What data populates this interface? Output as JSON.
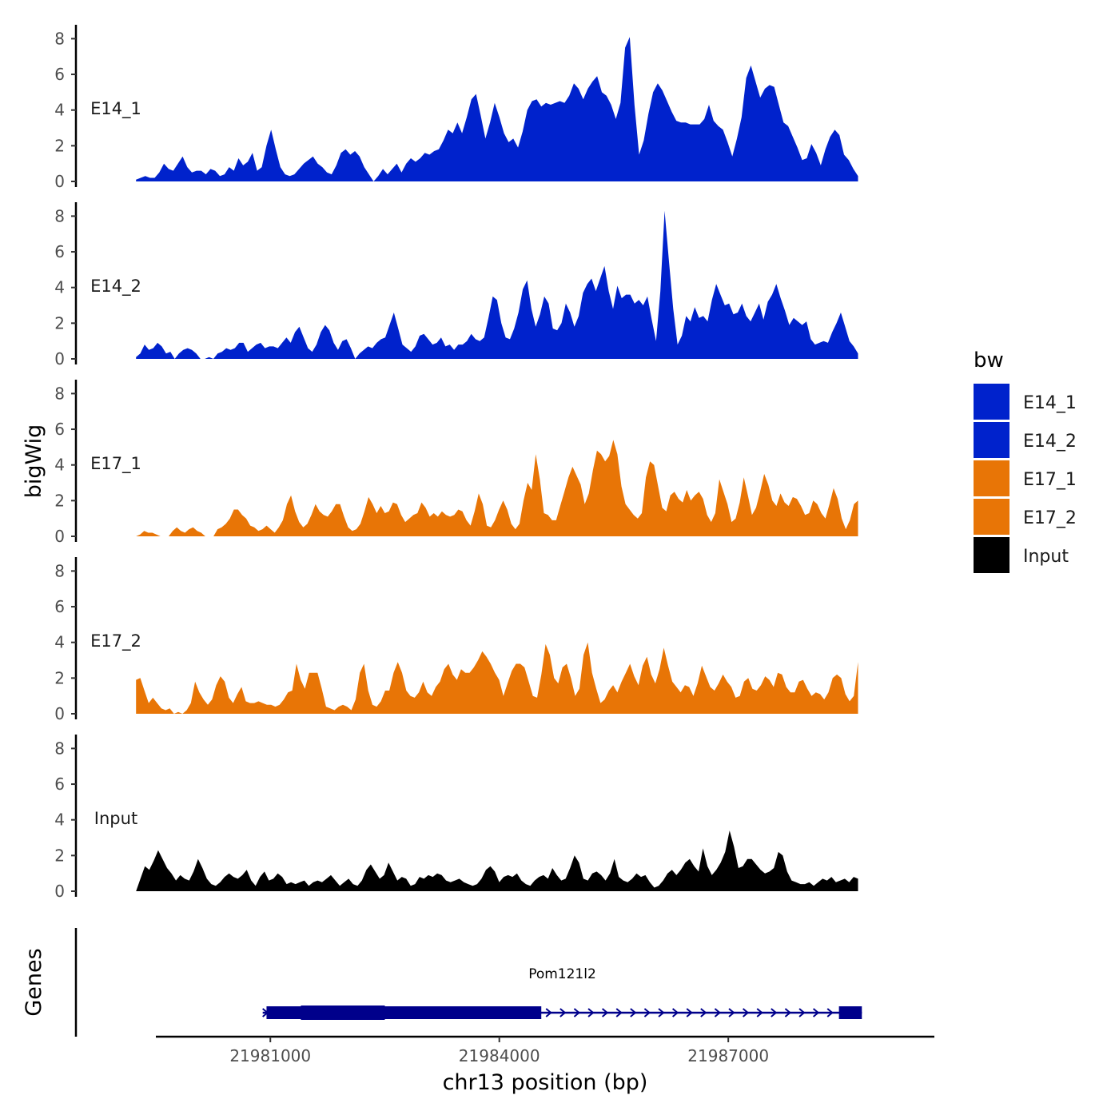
{
  "chart_data": {
    "type": "area",
    "ylabel": "bigWig",
    "xlabel": "chr13 position (bp)",
    "gene_track_label": "Genes",
    "xlim": [
      21979500,
      21989700
    ],
    "ylim": [
      0,
      8.6
    ],
    "x_ticks": [
      21981000,
      21984000,
      21987000
    ],
    "x_tick_labels": [
      "21981000",
      "21984000",
      "21987000"
    ],
    "y_ticks": [
      0,
      2,
      4,
      6,
      8
    ],
    "y_tick_labels": [
      "0",
      "2",
      "4",
      "6",
      "8"
    ],
    "region": [
      21979240,
      21988700
    ],
    "legend": {
      "title": "bw",
      "entries": [
        {
          "name": "E14_1",
          "color": "#0022CC"
        },
        {
          "name": "E14_2",
          "color": "#0022CC"
        },
        {
          "name": "E17_1",
          "color": "#E87506"
        },
        {
          "name": "E17_2",
          "color": "#E87506"
        },
        {
          "name": "Input",
          "color": "#000000"
        }
      ]
    },
    "series": [
      {
        "name": "E14_1",
        "color": "#0022CC",
        "values": [
          0.1,
          0.2,
          0.3,
          0.2,
          0.2,
          0.5,
          1.0,
          0.7,
          0.6,
          1.0,
          1.4,
          0.8,
          0.5,
          0.6,
          0.6,
          0.4,
          0.7,
          0.6,
          0.3,
          0.4,
          0.8,
          0.6,
          1.3,
          0.9,
          1.1,
          1.6,
          0.6,
          0.8,
          2.0,
          2.9,
          1.8,
          0.8,
          0.4,
          0.3,
          0.4,
          0.7,
          1.0,
          1.2,
          1.4,
          1.0,
          0.8,
          0.5,
          0.4,
          0.9,
          1.6,
          1.8,
          1.5,
          1.7,
          1.4,
          0.8,
          0.4,
          0.0,
          0.3,
          0.7,
          0.4,
          0.7,
          1.0,
          0.5,
          1.0,
          1.3,
          1.1,
          1.3,
          1.6,
          1.5,
          1.7,
          1.8,
          2.3,
          2.9,
          2.7,
          3.3,
          2.7,
          3.6,
          4.6,
          4.9,
          3.7,
          2.4,
          3.3,
          4.4,
          3.6,
          2.7,
          2.2,
          2.4,
          1.9,
          2.8,
          4.0,
          4.5,
          4.6,
          4.2,
          4.4,
          4.3,
          4.4,
          4.5,
          4.4,
          4.8,
          5.5,
          5.2,
          4.6,
          5.2,
          5.6,
          5.9,
          5.0,
          4.8,
          4.3,
          3.5,
          4.4,
          7.5,
          8.1,
          4.3,
          1.5,
          2.3,
          3.8,
          5.0,
          5.5,
          5.1,
          4.5,
          3.9,
          3.4,
          3.3,
          3.3,
          3.2,
          3.2,
          3.2,
          3.5,
          4.3,
          3.4,
          3.1,
          2.9,
          2.2,
          1.4,
          2.4,
          3.6,
          5.8,
          6.5,
          5.6,
          4.7,
          5.2,
          5.4,
          5.3,
          4.3,
          3.3,
          3.1,
          2.5,
          1.9,
          1.2,
          1.3,
          2.1,
          1.6,
          0.9,
          1.8,
          2.5,
          2.9,
          2.6,
          1.5,
          1.2,
          0.7,
          0.3
        ]
      },
      {
        "name": "E14_2",
        "color": "#0022CC",
        "values": [
          0.1,
          0.3,
          0.8,
          0.5,
          0.6,
          0.9,
          0.7,
          0.3,
          0.4,
          0.0,
          0.3,
          0.5,
          0.6,
          0.5,
          0.3,
          0.0,
          0.0,
          0.1,
          0.0,
          0.3,
          0.4,
          0.6,
          0.5,
          0.6,
          0.9,
          0.9,
          0.4,
          0.6,
          0.8,
          0.9,
          0.6,
          0.7,
          0.7,
          0.6,
          0.9,
          1.2,
          0.9,
          1.5,
          1.8,
          1.2,
          0.6,
          0.4,
          0.8,
          1.5,
          1.9,
          1.6,
          0.9,
          0.5,
          1.0,
          1.1,
          0.6,
          0.0,
          0.3,
          0.5,
          0.7,
          0.6,
          0.9,
          1.1,
          1.2,
          1.9,
          2.6,
          1.7,
          0.8,
          0.6,
          0.4,
          0.7,
          1.3,
          1.4,
          1.1,
          0.8,
          0.9,
          1.2,
          0.7,
          0.8,
          0.5,
          0.8,
          0.8,
          1.0,
          1.4,
          1.1,
          1.0,
          1.2,
          2.3,
          3.5,
          3.3,
          2.0,
          1.2,
          1.1,
          1.7,
          2.6,
          3.9,
          4.4,
          2.8,
          1.8,
          2.5,
          3.5,
          3.1,
          1.7,
          1.6,
          2.0,
          3.1,
          2.6,
          1.8,
          2.4,
          3.7,
          4.2,
          4.5,
          3.8,
          4.5,
          5.2,
          3.8,
          2.8,
          4.1,
          3.4,
          3.6,
          3.6,
          3.1,
          3.3,
          3.0,
          3.5,
          2.2,
          1.0,
          3.8,
          8.3,
          5.5,
          2.8,
          0.8,
          1.3,
          2.4,
          2.1,
          2.9,
          2.3,
          2.4,
          2.1,
          3.3,
          4.2,
          3.6,
          3.0,
          3.1,
          2.5,
          2.6,
          3.1,
          2.4,
          2.1,
          2.6,
          3.1,
          2.2,
          3.2,
          3.6,
          4.2,
          3.4,
          2.7,
          1.9,
          2.3,
          2.1,
          1.9,
          2.1,
          1.1,
          0.8,
          0.9,
          1.0,
          0.9,
          1.5,
          2.0,
          2.6,
          1.8,
          1.0,
          0.7,
          0.3
        ]
      },
      {
        "name": "E17_1",
        "color": "#E87506",
        "values": [
          0.0,
          0.1,
          0.3,
          0.2,
          0.2,
          0.1,
          0.0,
          0.0,
          0.0,
          0.3,
          0.5,
          0.3,
          0.2,
          0.4,
          0.5,
          0.3,
          0.2,
          0.0,
          0.0,
          0.0,
          0.4,
          0.5,
          0.7,
          1.0,
          1.5,
          1.5,
          1.2,
          1.0,
          0.6,
          0.5,
          0.3,
          0.4,
          0.6,
          0.4,
          0.2,
          0.5,
          0.9,
          1.8,
          2.3,
          1.4,
          0.8,
          0.5,
          0.7,
          1.2,
          1.8,
          1.4,
          1.2,
          1.1,
          1.4,
          1.8,
          1.8,
          1.1,
          0.5,
          0.3,
          0.4,
          0.7,
          1.4,
          2.2,
          1.8,
          1.3,
          1.7,
          1.3,
          1.4,
          1.9,
          1.8,
          1.2,
          0.8,
          1.0,
          1.2,
          1.3,
          1.9,
          1.6,
          1.1,
          1.3,
          1.1,
          1.4,
          1.2,
          1.1,
          1.2,
          1.5,
          1.4,
          0.9,
          0.6,
          1.4,
          2.4,
          1.8,
          0.6,
          0.5,
          0.9,
          1.5,
          2.0,
          1.5,
          0.7,
          0.4,
          0.7,
          2.0,
          3.0,
          2.6,
          4.6,
          3.2,
          1.3,
          1.2,
          0.9,
          0.9,
          1.7,
          2.5,
          3.3,
          3.9,
          3.4,
          2.9,
          1.8,
          2.4,
          3.7,
          4.8,
          4.6,
          4.2,
          4.5,
          5.4,
          4.6,
          2.8,
          1.8,
          1.5,
          1.2,
          1.0,
          1.3,
          3.3,
          4.2,
          4.0,
          2.8,
          1.6,
          1.4,
          2.3,
          2.5,
          2.1,
          1.9,
          2.6,
          2.0,
          2.3,
          2.5,
          2.1,
          1.2,
          0.8,
          1.3,
          3.2,
          2.5,
          1.8,
          0.8,
          1.0,
          1.9,
          3.3,
          2.3,
          1.2,
          1.6,
          2.5,
          3.5,
          2.9,
          2.0,
          1.7,
          2.4,
          1.9,
          1.7,
          2.2,
          2.1,
          1.7,
          1.2,
          1.3,
          2.0,
          1.8,
          1.3,
          1.0,
          1.8,
          2.7,
          2.1,
          1.0,
          0.4,
          0.9,
          1.8,
          2.0
        ]
      },
      {
        "name": "E17_2",
        "color": "#E87506",
        "values": [
          1.9,
          2.0,
          1.3,
          0.6,
          0.9,
          0.6,
          0.3,
          0.2,
          0.3,
          0.0,
          0.1,
          0.0,
          0.2,
          0.6,
          1.8,
          1.2,
          0.8,
          0.5,
          0.8,
          1.6,
          2.1,
          1.8,
          0.9,
          0.6,
          1.1,
          1.5,
          0.7,
          0.6,
          0.6,
          0.7,
          0.6,
          0.5,
          0.5,
          0.4,
          0.5,
          0.8,
          1.2,
          1.3,
          2.8,
          1.9,
          1.4,
          2.3,
          2.3,
          2.3,
          1.4,
          0.4,
          0.3,
          0.2,
          0.4,
          0.5,
          0.4,
          0.2,
          0.8,
          2.3,
          2.8,
          1.3,
          0.5,
          0.4,
          0.7,
          1.3,
          1.3,
          2.3,
          2.9,
          2.3,
          1.3,
          1.0,
          0.9,
          1.2,
          1.8,
          1.2,
          1.0,
          1.5,
          1.8,
          2.5,
          2.8,
          2.2,
          1.9,
          2.5,
          2.3,
          2.3,
          2.6,
          3.0,
          3.5,
          3.2,
          2.8,
          2.3,
          1.9,
          1.0,
          1.7,
          2.4,
          2.8,
          2.8,
          2.6,
          1.8,
          1.0,
          0.9,
          2.2,
          3.9,
          3.3,
          2.0,
          1.7,
          2.6,
          2.8,
          2.0,
          1.0,
          1.4,
          3.3,
          4.0,
          2.3,
          1.4,
          0.6,
          0.8,
          1.3,
          1.6,
          1.2,
          1.8,
          2.3,
          2.8,
          2.1,
          1.6,
          2.7,
          3.2,
          2.2,
          1.7,
          2.5,
          3.7,
          2.7,
          1.8,
          1.5,
          1.2,
          1.6,
          1.5,
          1.0,
          1.7,
          2.7,
          2.1,
          1.5,
          1.3,
          1.7,
          2.2,
          1.8,
          1.5,
          0.9,
          1.0,
          1.8,
          2.0,
          1.4,
          1.3,
          1.6,
          2.1,
          1.9,
          1.5,
          2.3,
          2.2,
          1.5,
          1.2,
          1.2,
          1.8,
          1.9,
          1.4,
          1.0,
          1.2,
          1.1,
          0.8,
          1.2,
          2.0,
          2.2,
          2.0,
          1.1,
          0.7,
          1.0,
          2.9
        ]
      },
      {
        "name": "Input",
        "color": "#000000",
        "values": [
          0.0,
          0.7,
          1.4,
          1.2,
          1.7,
          2.3,
          1.8,
          1.3,
          1.0,
          0.6,
          0.9,
          0.7,
          0.6,
          1.1,
          1.8,
          1.3,
          0.7,
          0.4,
          0.3,
          0.5,
          0.8,
          1.0,
          0.8,
          0.7,
          0.9,
          1.2,
          0.6,
          0.3,
          0.8,
          1.1,
          0.6,
          0.7,
          1.0,
          0.8,
          0.4,
          0.5,
          0.4,
          0.5,
          0.6,
          0.3,
          0.5,
          0.6,
          0.5,
          0.7,
          0.9,
          0.6,
          0.3,
          0.5,
          0.7,
          0.4,
          0.3,
          0.6,
          1.2,
          1.5,
          1.1,
          0.7,
          0.9,
          1.6,
          1.1,
          0.6,
          0.8,
          0.7,
          0.3,
          0.4,
          0.8,
          0.7,
          0.9,
          0.8,
          1.0,
          0.9,
          0.6,
          0.5,
          0.6,
          0.7,
          0.5,
          0.4,
          0.3,
          0.4,
          0.7,
          1.2,
          1.4,
          1.1,
          0.5,
          0.8,
          0.9,
          0.8,
          1.0,
          0.6,
          0.4,
          0.3,
          0.6,
          0.8,
          0.9,
          0.7,
          1.3,
          0.9,
          0.6,
          0.7,
          1.3,
          2.0,
          1.6,
          0.7,
          0.6,
          1.0,
          1.1,
          0.9,
          0.6,
          1.0,
          1.8,
          0.8,
          0.6,
          0.5,
          0.7,
          1.0,
          0.8,
          0.9,
          0.5,
          0.2,
          0.3,
          0.6,
          1.0,
          1.2,
          0.9,
          1.2,
          1.6,
          1.8,
          1.4,
          1.1,
          2.4,
          1.4,
          0.9,
          1.2,
          1.6,
          2.2,
          3.4,
          2.5,
          1.3,
          1.4,
          1.8,
          1.8,
          1.5,
          1.2,
          1.0,
          1.1,
          1.3,
          2.2,
          2.0,
          1.1,
          0.6,
          0.5,
          0.4,
          0.4,
          0.5,
          0.3,
          0.5,
          0.7,
          0.6,
          0.8,
          0.5,
          0.6,
          0.7,
          0.5,
          0.8,
          0.7
        ]
      }
    ],
    "gene": {
      "name": "Pom121l2",
      "start": 21980900,
      "end": 21988750,
      "strand": "+",
      "color": "#00008B",
      "thick_segments": [
        [
          21980950,
          21984550
        ],
        [
          21988450,
          21988750
        ]
      ],
      "thicker_segment": [
        21981400,
        21982500
      ]
    }
  }
}
